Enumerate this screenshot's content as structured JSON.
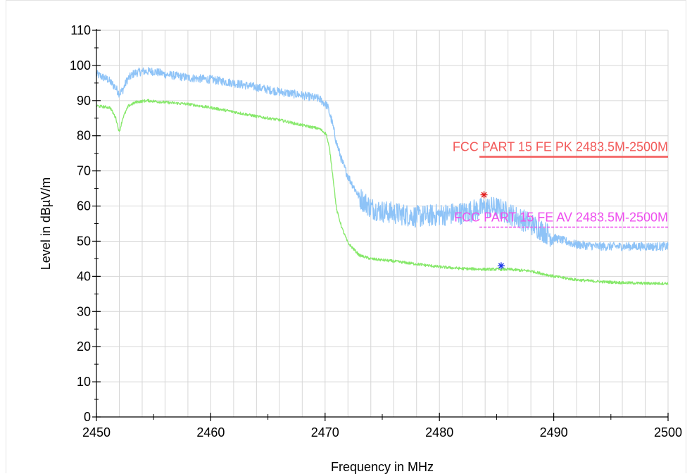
{
  "colors": {
    "peak_trace": "#8ec3f7",
    "average_trace": "#86e86a",
    "pk_limit": "#f25a5a",
    "av_limit": "#ee4fee",
    "peak_marker": "#e21f1f",
    "average_marker": "#1f3be8",
    "grid": "#d6d6d6"
  },
  "chart_data": {
    "type": "line",
    "xlabel": "Frequency in MHz",
    "ylabel": "Level in dBµV/m",
    "xlim": [
      2450,
      2500
    ],
    "ylim": [
      0,
      110
    ],
    "x_ticks": [
      2450,
      2460,
      2470,
      2480,
      2490,
      2500
    ],
    "y_ticks": [
      0,
      10,
      20,
      30,
      40,
      50,
      60,
      70,
      80,
      90,
      100,
      110
    ],
    "grid": true,
    "series": [
      {
        "key": "peak",
        "color": "#8ec3f7",
        "noise": 1.2,
        "x": [
          2450,
          2451,
          2451.6,
          2452,
          2452.3,
          2452.7,
          2453.3,
          2454,
          2455,
          2456,
          2458,
          2460,
          2462,
          2464,
          2466,
          2468,
          2469.5,
          2470.2,
          2470.6,
          2471,
          2471.5,
          2472,
          2472.5,
          2473,
          2474,
          2475,
          2476,
          2478,
          2480,
          2482,
          2484,
          2485,
          2486,
          2487,
          2488,
          2489,
          2490,
          2491,
          2492,
          2494,
          2496,
          2498,
          2500
        ],
        "y": [
          97.5,
          96,
          94,
          92,
          93,
          96,
          97.8,
          98.3,
          98.3,
          97.5,
          96.5,
          96,
          95,
          93.8,
          92.5,
          91.5,
          90.5,
          88.5,
          84,
          78,
          72.5,
          68.5,
          65.5,
          62.5,
          59.5,
          58.5,
          58,
          57,
          57.5,
          58,
          59.5,
          59.5,
          58,
          56.5,
          55,
          53,
          51,
          50,
          49,
          48.5,
          48.5,
          48.5,
          48.5
        ]
      },
      {
        "key": "average",
        "color": "#86e86a",
        "noise": 0.4,
        "x": [
          2450,
          2451.2,
          2451.7,
          2452,
          2452.3,
          2452.8,
          2453.5,
          2454.5,
          2456,
          2458,
          2460,
          2462,
          2464,
          2466,
          2468,
          2469.5,
          2470.1,
          2470.4,
          2470.7,
          2471,
          2471.5,
          2472,
          2473,
          2474,
          2476,
          2478,
          2480,
          2482,
          2484,
          2486,
          2488,
          2490,
          2492,
          2494,
          2496,
          2498,
          2500
        ],
        "y": [
          88.5,
          88,
          85,
          81,
          85,
          88.5,
          89.6,
          90,
          89.5,
          89,
          88,
          86.8,
          85.5,
          84.5,
          83,
          82,
          80.5,
          76,
          68,
          59,
          53.5,
          49.5,
          46,
          45,
          44.3,
          43.5,
          42.7,
          42.2,
          42,
          42,
          41.5,
          40,
          39,
          38.5,
          38.2,
          38,
          38
        ]
      }
    ],
    "limits": [
      {
        "key": "pk",
        "label": "FCC PART 15 FE PK 2483.5M-2500M",
        "x": [
          2483.5,
          2500
        ],
        "y": 74,
        "color": "#f25a5a",
        "style": "solid"
      },
      {
        "key": "av",
        "label": "FCC PART 15 FE AV 2483.5M-2500M",
        "x": [
          2483.5,
          2500
        ],
        "y": 54,
        "color": "#ee4fee",
        "style": "dashed"
      }
    ],
    "markers": [
      {
        "key": "peak_marker",
        "x": 2483.9,
        "y": 63.2,
        "color": "#e21f1f"
      },
      {
        "key": "average_marker",
        "x": 2485.4,
        "y": 43,
        "color": "#1f3be8"
      }
    ]
  }
}
